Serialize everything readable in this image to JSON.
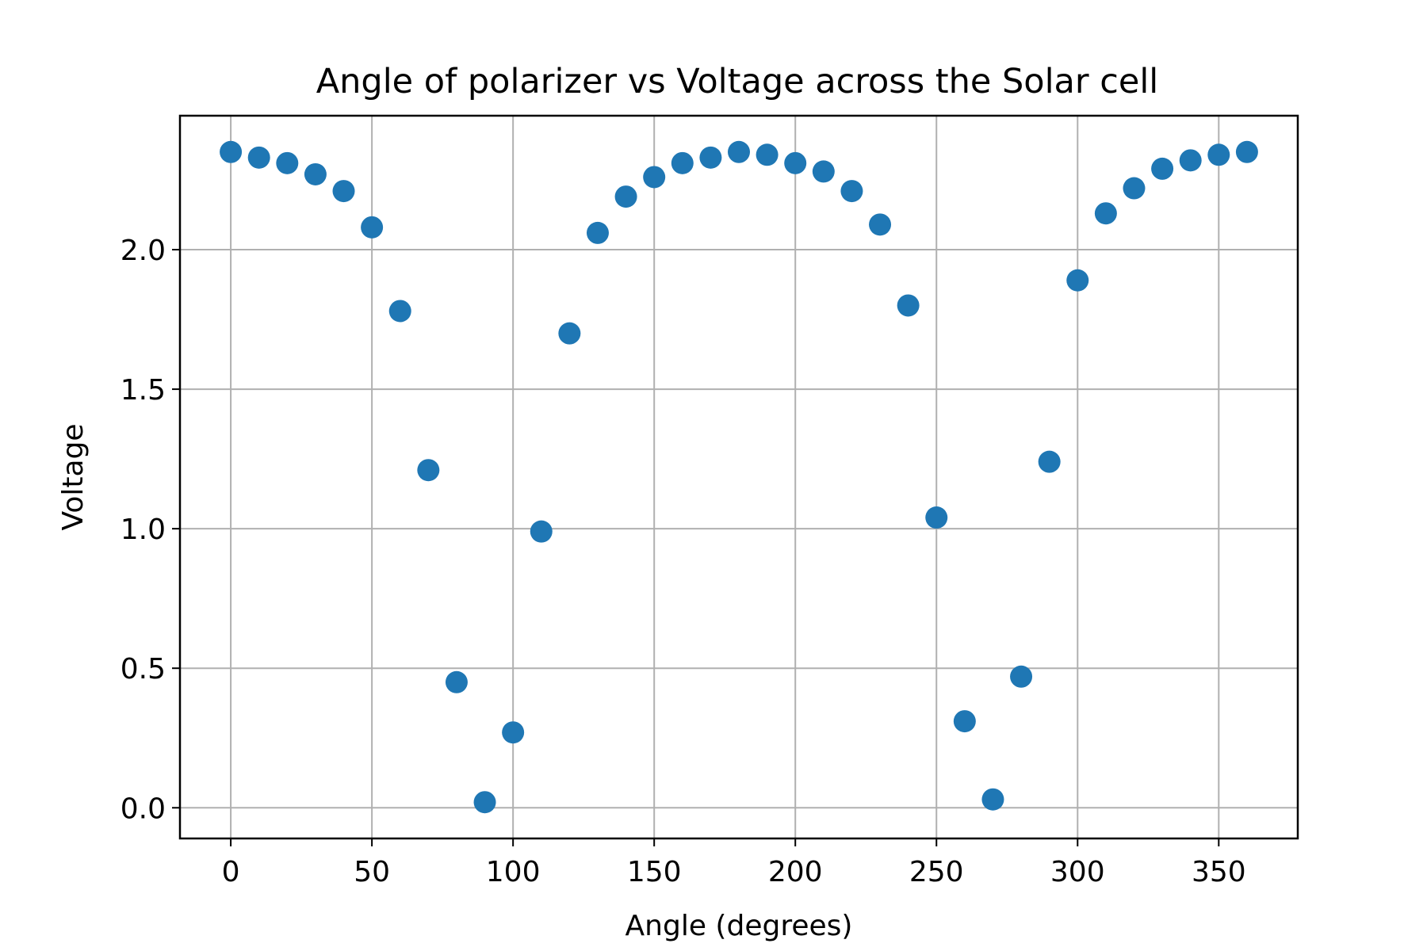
{
  "chart_data": {
    "type": "scatter",
    "title": "Angle of polarizer vs Voltage across the Solar cell",
    "xlabel": "Angle (degrees)",
    "ylabel": "Voltage",
    "xlim": [
      -18,
      378
    ],
    "ylim": [
      -0.11,
      2.48
    ],
    "xticks": [
      0,
      50,
      100,
      150,
      200,
      250,
      300,
      350
    ],
    "xtick_labels": [
      "0",
      "50",
      "100",
      "150",
      "200",
      "250",
      "300",
      "350"
    ],
    "yticks": [
      0.0,
      0.5,
      1.0,
      1.5,
      2.0
    ],
    "ytick_labels": [
      "0.0",
      "0.5",
      "1.0",
      "1.5",
      "2.0"
    ],
    "grid": true,
    "marker_color": "#1f77b4",
    "x": [
      0,
      10,
      20,
      30,
      40,
      50,
      60,
      70,
      80,
      90,
      100,
      110,
      120,
      130,
      140,
      150,
      160,
      170,
      180,
      190,
      200,
      210,
      220,
      230,
      240,
      250,
      260,
      270,
      280,
      290,
      300,
      310,
      320,
      330,
      340,
      350,
      360
    ],
    "y": [
      2.35,
      2.33,
      2.31,
      2.27,
      2.21,
      2.08,
      1.78,
      1.21,
      0.45,
      0.02,
      0.27,
      0.99,
      1.7,
      2.06,
      2.19,
      2.26,
      2.31,
      2.33,
      2.35,
      2.34,
      2.31,
      2.28,
      2.21,
      2.09,
      1.8,
      1.04,
      0.31,
      0.03,
      0.47,
      1.24,
      1.89,
      2.13,
      2.22,
      2.29,
      2.32,
      2.34,
      2.35
    ]
  }
}
